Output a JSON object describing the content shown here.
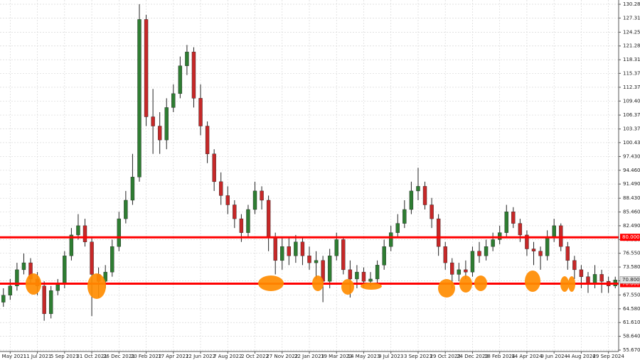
{
  "chart_data": {
    "type": "candlestick",
    "categories": [
      null,
      "16 May 2021",
      null,
      null,
      null,
      "11 Jul 2021",
      null,
      null,
      null,
      "5 Sep 2021",
      null,
      null,
      null,
      "31 Oct 2021",
      null,
      null,
      null,
      "26 Dec 2021",
      null,
      null,
      null,
      "20 Feb 2022",
      null,
      null,
      null,
      "17 Apr 2022",
      null,
      null,
      null,
      "12 Jun 2022",
      null,
      null,
      null,
      "7 Aug 2022",
      null,
      null,
      null,
      "2 Oct 2022",
      null,
      null,
      null,
      "27 Nov 2022",
      null,
      null,
      null,
      "22 Jan 2023",
      null,
      null,
      null,
      "19 Mar 2023",
      null,
      null,
      null,
      "14 May 2023",
      null,
      null,
      null,
      "9 Jul 2023",
      null,
      null,
      null,
      "3 Sep 2023",
      null,
      null,
      null,
      "29 Oct 2023",
      null,
      null,
      null,
      "24 Dec 2023",
      null,
      null,
      null,
      "18 Feb 2024",
      null,
      null,
      null,
      "14 Apr 2024",
      null,
      null,
      null,
      "9 Jun 2024",
      null,
      null,
      null,
      "4 Aug 2024",
      null,
      null,
      null,
      "29 Sep 2024",
      null
    ],
    "open": [
      66,
      67.5,
      69.5,
      73,
      74.5,
      71,
      69.5,
      63.5,
      68.5,
      70,
      76,
      80.5,
      82.5,
      79,
      72,
      70.5,
      72.5,
      78,
      84,
      88,
      93,
      127,
      106,
      104,
      101,
      108,
      111,
      117,
      120,
      110,
      104,
      98,
      92,
      89,
      87,
      84,
      81,
      86,
      90,
      88,
      80,
      75,
      78,
      76,
      79,
      76,
      74.5,
      75,
      70.5,
      76,
      79.5,
      73,
      71,
      72.5,
      70.5,
      71,
      74,
      78,
      81,
      83,
      86,
      90,
      91,
      87,
      84,
      78,
      74.5,
      72,
      73,
      72.5,
      77,
      76,
      78,
      79.5,
      81,
      85.5,
      83,
      80.5,
      77.5,
      77,
      76,
      80,
      82.5,
      78,
      75,
      73,
      71.5,
      70,
      72,
      70.5,
      69.5
    ],
    "high": [
      69,
      71,
      74.5,
      76.5,
      75.5,
      72.5,
      70.5,
      69.5,
      71,
      77,
      82,
      85,
      84,
      80,
      73.5,
      74,
      79.5,
      85.5,
      90,
      98,
      130.3,
      128,
      112,
      107,
      110,
      113,
      119,
      121.5,
      121,
      113,
      105,
      99,
      94,
      91,
      88,
      85,
      87,
      92,
      91,
      89,
      81,
      80,
      80,
      80.5,
      80,
      78,
      77,
      76,
      77.5,
      81,
      80,
      75,
      74,
      73.5,
      72.5,
      75,
      79.5,
      82.5,
      85,
      88,
      92,
      95,
      92,
      88.5,
      85,
      79,
      75.5,
      74.5,
      75,
      78,
      79,
      79.5,
      81,
      82.5,
      87,
      86.5,
      84,
      81.5,
      79,
      78,
      81.5,
      84,
      83,
      79,
      76,
      74,
      72.5,
      74,
      73,
      71.5,
      71.5
    ],
    "low": [
      65,
      66.5,
      68.5,
      72,
      70,
      67.5,
      62,
      62.5,
      67.5,
      69,
      75,
      79.5,
      78,
      63,
      67,
      69,
      71.5,
      77,
      83,
      87,
      92,
      104,
      98,
      98,
      99,
      107,
      110,
      115,
      108,
      102,
      96,
      90,
      87,
      85,
      82,
      79,
      80,
      85,
      86,
      77,
      72,
      73,
      74,
      74.5,
      74,
      73,
      71,
      66,
      69,
      75,
      72,
      67,
      69,
      69,
      69.5,
      70,
      73,
      77,
      80,
      82,
      85,
      88,
      86,
      82,
      76,
      73,
      69,
      70.5,
      71,
      71.5,
      74.5,
      75,
      77,
      78.5,
      80,
      82,
      79,
      76,
      74,
      73,
      75,
      79,
      77,
      73,
      71,
      69,
      68,
      69,
      68,
      68,
      69
    ],
    "close": [
      67.5,
      69.5,
      73,
      74.5,
      71,
      69.5,
      63.5,
      68.5,
      70,
      76,
      80.5,
      82.5,
      79,
      72,
      70.5,
      72.5,
      78,
      84,
      88,
      93,
      127,
      106,
      104,
      101,
      108,
      111,
      117,
      120,
      110,
      104,
      98,
      92,
      89,
      87,
      84,
      81,
      86,
      90,
      88,
      80,
      75,
      78,
      76,
      79,
      76,
      74.5,
      75,
      70.5,
      76,
      79.5,
      73,
      71,
      72.5,
      70.5,
      71,
      74,
      78,
      81,
      83,
      86,
      90,
      91,
      87,
      84,
      78,
      74.5,
      72,
      73,
      72.5,
      77,
      76,
      78,
      79.5,
      81,
      85.5,
      83,
      80.5,
      77.5,
      77,
      76,
      80,
      82.5,
      78,
      75,
      73,
      71.5,
      70,
      72,
      70.5,
      69.5,
      70.8
    ],
    "up_color": "#2e7d32",
    "down_color": "#c62828",
    "ylim": [
      55.67,
      130.28
    ],
    "yticks": [
      {
        "value": 130.28,
        "label": "130.280"
      },
      {
        "value": 127.31,
        "label": "127.310"
      },
      {
        "value": 124.25,
        "label": "124.250"
      },
      {
        "value": 121.28,
        "label": "121.280"
      },
      {
        "value": 118.31,
        "label": "118.310"
      },
      {
        "value": 115.37,
        "label": "115.370"
      },
      {
        "value": 112.37,
        "label": "112.370"
      },
      {
        "value": 109.4,
        "label": "109.400"
      },
      {
        "value": 106.37,
        "label": "106.370"
      },
      {
        "value": 103.37,
        "label": "103.370"
      },
      {
        "value": 100.43,
        "label": "100.430"
      },
      {
        "value": 97.43,
        "label": "97.430"
      },
      {
        "value": 94.46,
        "label": "94.460"
      },
      {
        "value": 91.49,
        "label": "91.490"
      },
      {
        "value": 88.43,
        "label": "88.430"
      },
      {
        "value": 85.46,
        "label": "85.460"
      },
      {
        "value": 82.49,
        "label": "82.490"
      },
      {
        "value": 79.52,
        "label": "79.520"
      },
      {
        "value": 76.55,
        "label": "76.550"
      },
      {
        "value": 73.58,
        "label": "73.580"
      },
      {
        "value": 70.61,
        "label": "70.610"
      },
      {
        "value": 67.55,
        "label": "67.550"
      },
      {
        "value": 64.58,
        "label": "64.580"
      },
      {
        "value": 61.61,
        "label": "61.610"
      },
      {
        "value": 58.64,
        "label": "58.640"
      },
      {
        "value": 55.67,
        "label": "55.670"
      }
    ],
    "grid": true,
    "hlines": [
      {
        "value": 80,
        "label": "80.000",
        "color": "#ff0000"
      },
      {
        "value": 70,
        "label": "70.000",
        "color": "#ff0000"
      }
    ],
    "last_price": {
      "value": 70.8,
      "label": "70.800"
    }
  }
}
